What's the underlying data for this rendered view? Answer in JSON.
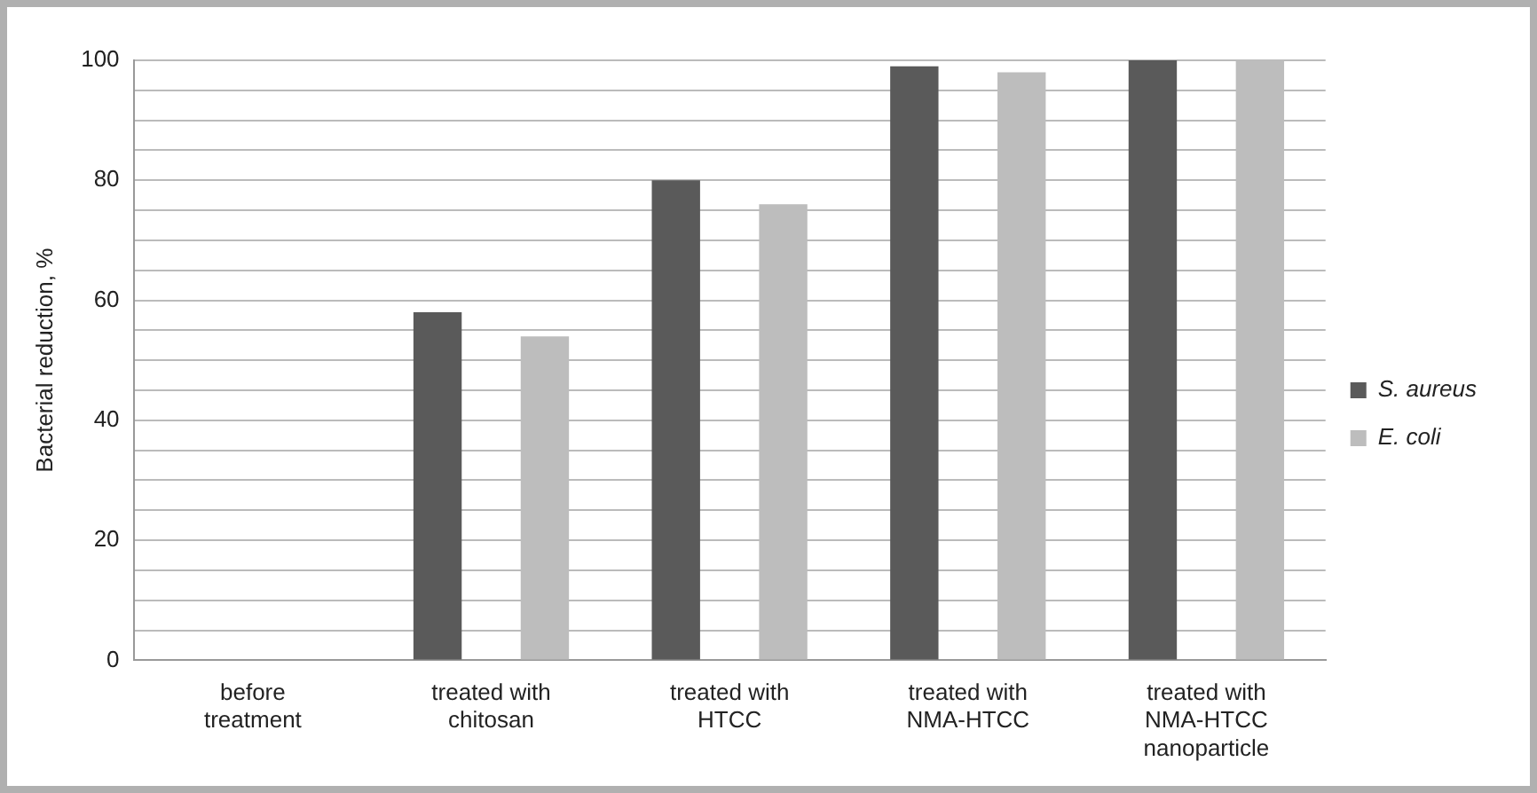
{
  "chart_data": {
    "type": "bar",
    "ylabel": "Bacterial reduction, %",
    "categories": [
      "before treatment",
      "treated with chitosan",
      "treated with HTCC",
      "treated with NMA-HTCC",
      "treated with NMA-HTCC nanoparticle"
    ],
    "series": [
      {
        "name": "S. aureus",
        "color": "#5a5a5a",
        "values": [
          0,
          58,
          80,
          99,
          100
        ]
      },
      {
        "name": "E. coli",
        "color": "#bdbdbd",
        "values": [
          0,
          54,
          76,
          98,
          100
        ]
      }
    ],
    "ylim": [
      0,
      100
    ],
    "yticks": [
      0,
      {
        "value": 5,
        "label": null
      },
      {
        "value": 10,
        "label": null
      },
      {
        "value": 15,
        "label": null
      },
      20,
      {
        "value": 25,
        "label": null
      },
      {
        "value": 30,
        "label": null
      },
      {
        "value": 35,
        "label": null
      },
      40,
      {
        "value": 45,
        "label": null
      },
      {
        "value": 50,
        "label": null
      },
      {
        "value": 55,
        "label": null
      },
      60,
      {
        "value": 65,
        "label": null
      },
      {
        "value": 70,
        "label": null
      },
      {
        "value": 75,
        "label": null
      },
      80,
      {
        "value": 85,
        "label": null
      },
      {
        "value": 90,
        "label": null
      },
      {
        "value": 95,
        "label": null
      },
      100
    ],
    "grid": "y",
    "legend": "right"
  }
}
